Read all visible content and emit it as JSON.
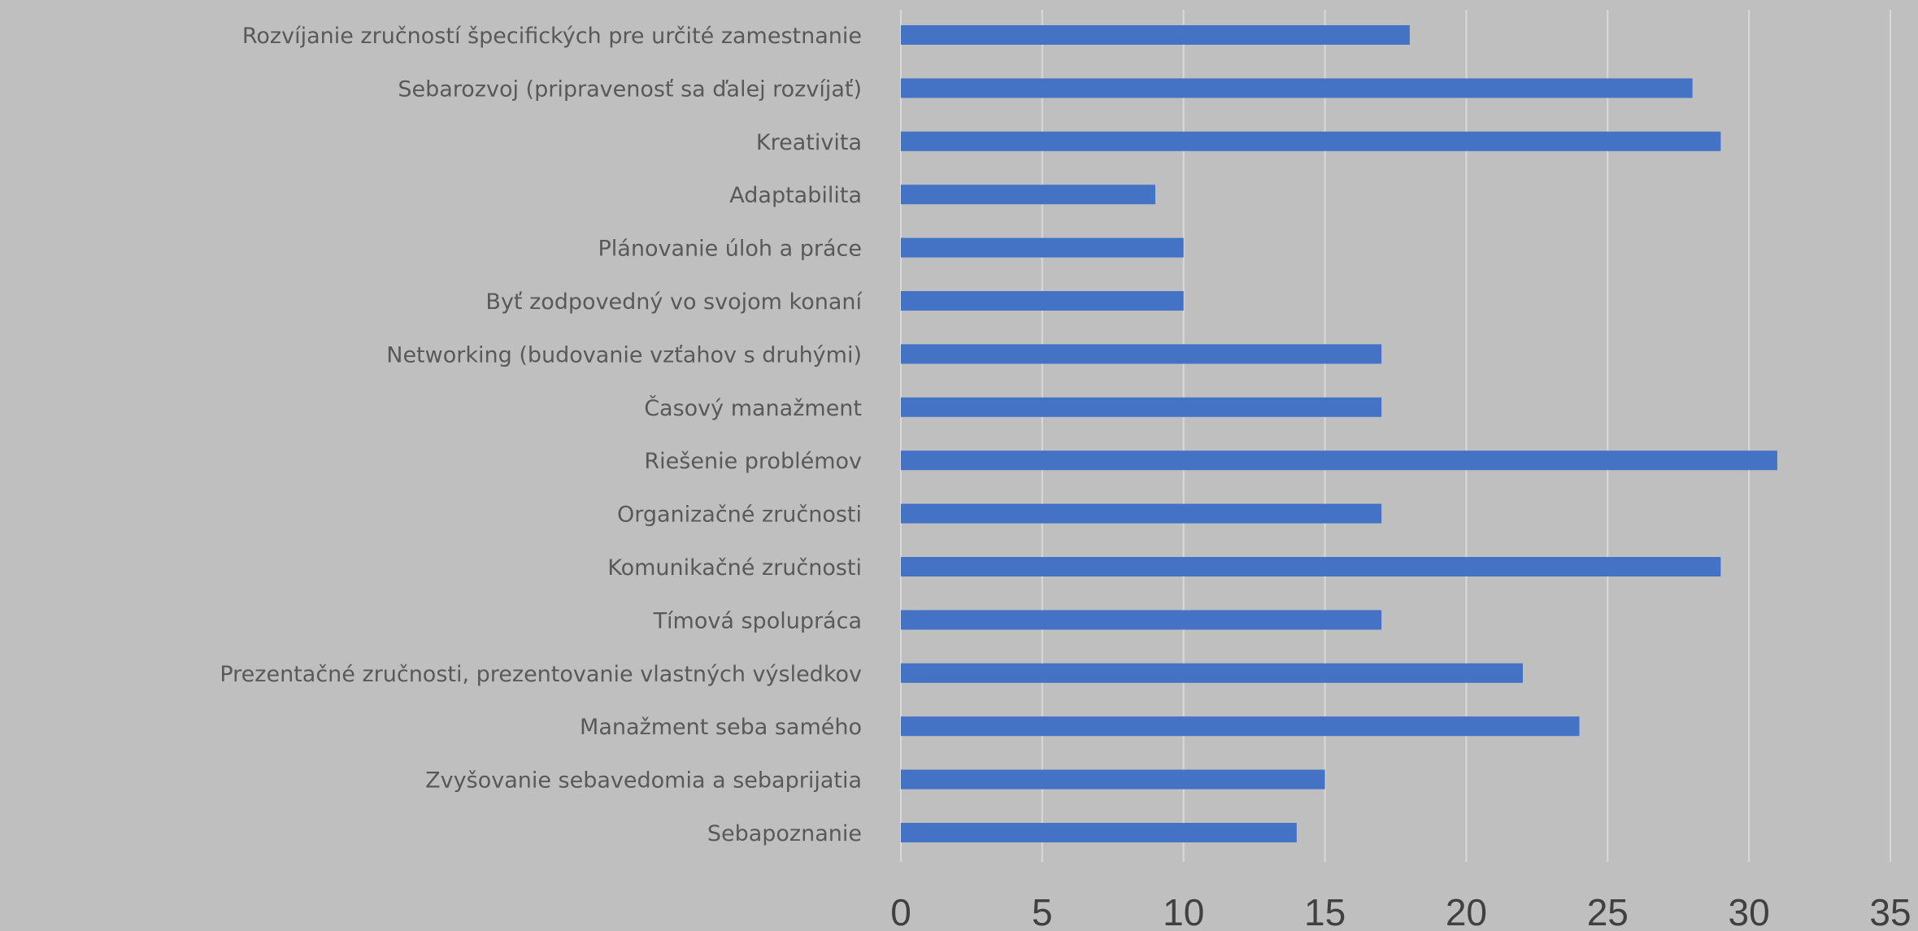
{
  "chart_data": {
    "type": "bar",
    "orientation": "horizontal",
    "categories": [
      "Rozvíjanie zručností špecifických pre určité zamestnanie",
      "Sebarozvoj (pripravenosť sa ďalej rozvíjať)",
      "Kreativita",
      "Adaptabilita",
      "Plánovanie úloh a práce",
      "Byť zodpovedný vo svojom konaní",
      "Networking (budovanie vzťahov s druhými)",
      "Časový manažment",
      "Riešenie problémov",
      "Organizačné zručnosti",
      "Komunikačné zručnosti",
      "Tímová spolupráca",
      "Prezentačné zručnosti, prezentovanie vlastných výsledkov",
      "Manažment seba samého",
      "Zvyšovanie sebavedomia a sebaprijatia",
      "Sebapoznanie"
    ],
    "values": [
      18,
      28,
      29,
      9,
      10,
      10,
      17,
      17,
      31,
      17,
      29,
      17,
      22,
      24,
      15,
      14
    ],
    "xlim": [
      0,
      35
    ],
    "xticks": [
      "0",
      "5",
      "10",
      "15",
      "20",
      "25",
      "30",
      "35"
    ],
    "title": "",
    "xlabel": "",
    "ylabel": "",
    "grid": "vertical",
    "legend": "none",
    "bar_color": "#4472c4",
    "grid_color": "#d9d9d9",
    "background_color": "#bfbfbf"
  }
}
